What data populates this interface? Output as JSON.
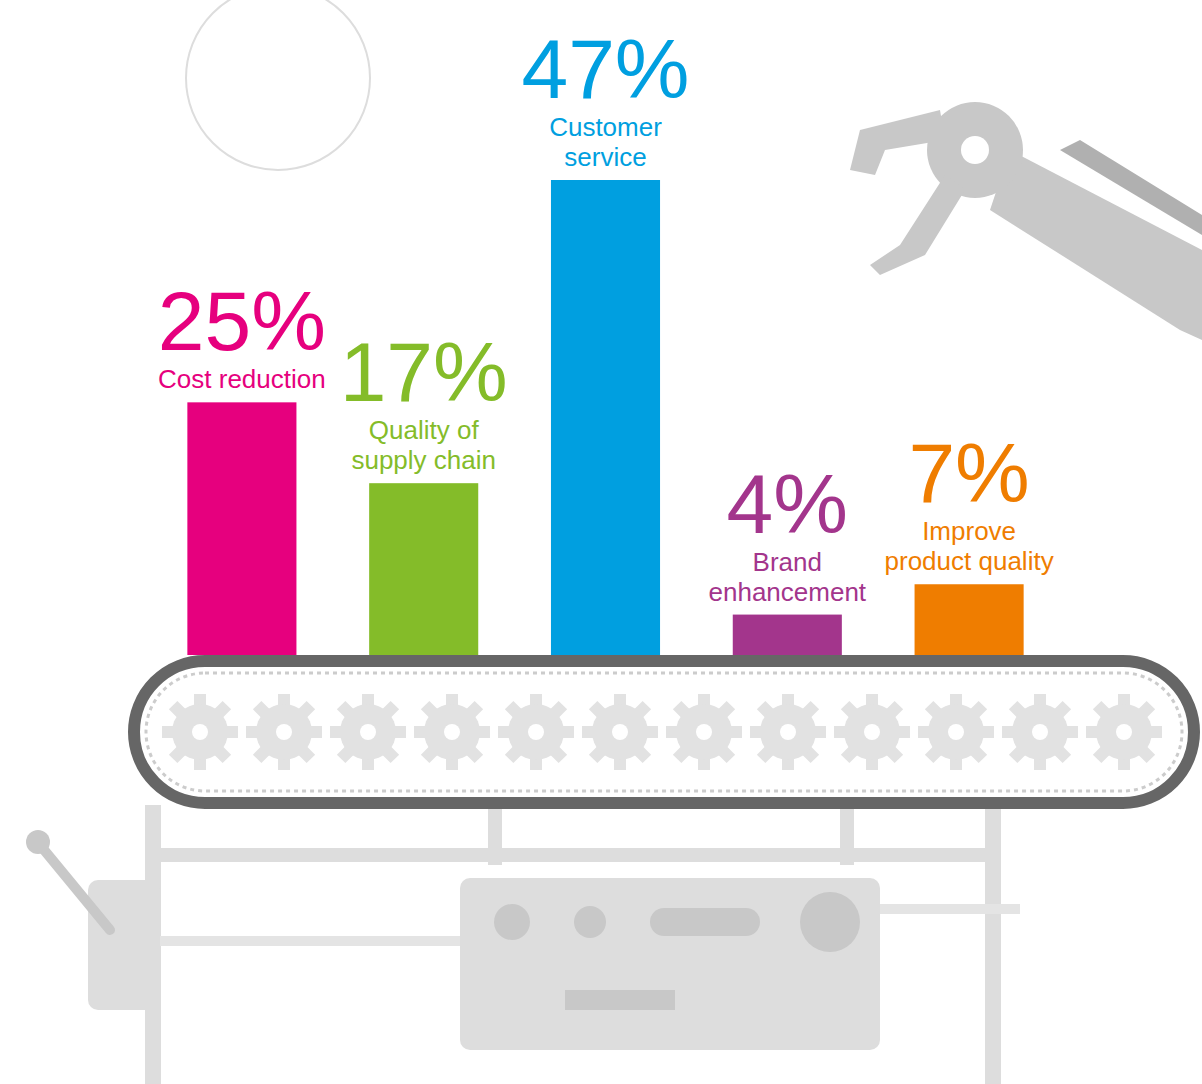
{
  "chart_data": {
    "type": "bar",
    "categories": [
      "Cost reduction",
      "Quality of supply chain",
      "Customer service",
      "Brand enhancement",
      "Improve product quality"
    ],
    "values": [
      25,
      17,
      47,
      4,
      7
    ],
    "value_labels": [
      "25%",
      "17%",
      "47%",
      "4%",
      "7%"
    ],
    "colors": [
      "#e6007e",
      "#84bc29",
      "#009fe0",
      "#a3358c",
      "#ef7d00"
    ],
    "data_labels": true,
    "tick_labels": false
  }
}
